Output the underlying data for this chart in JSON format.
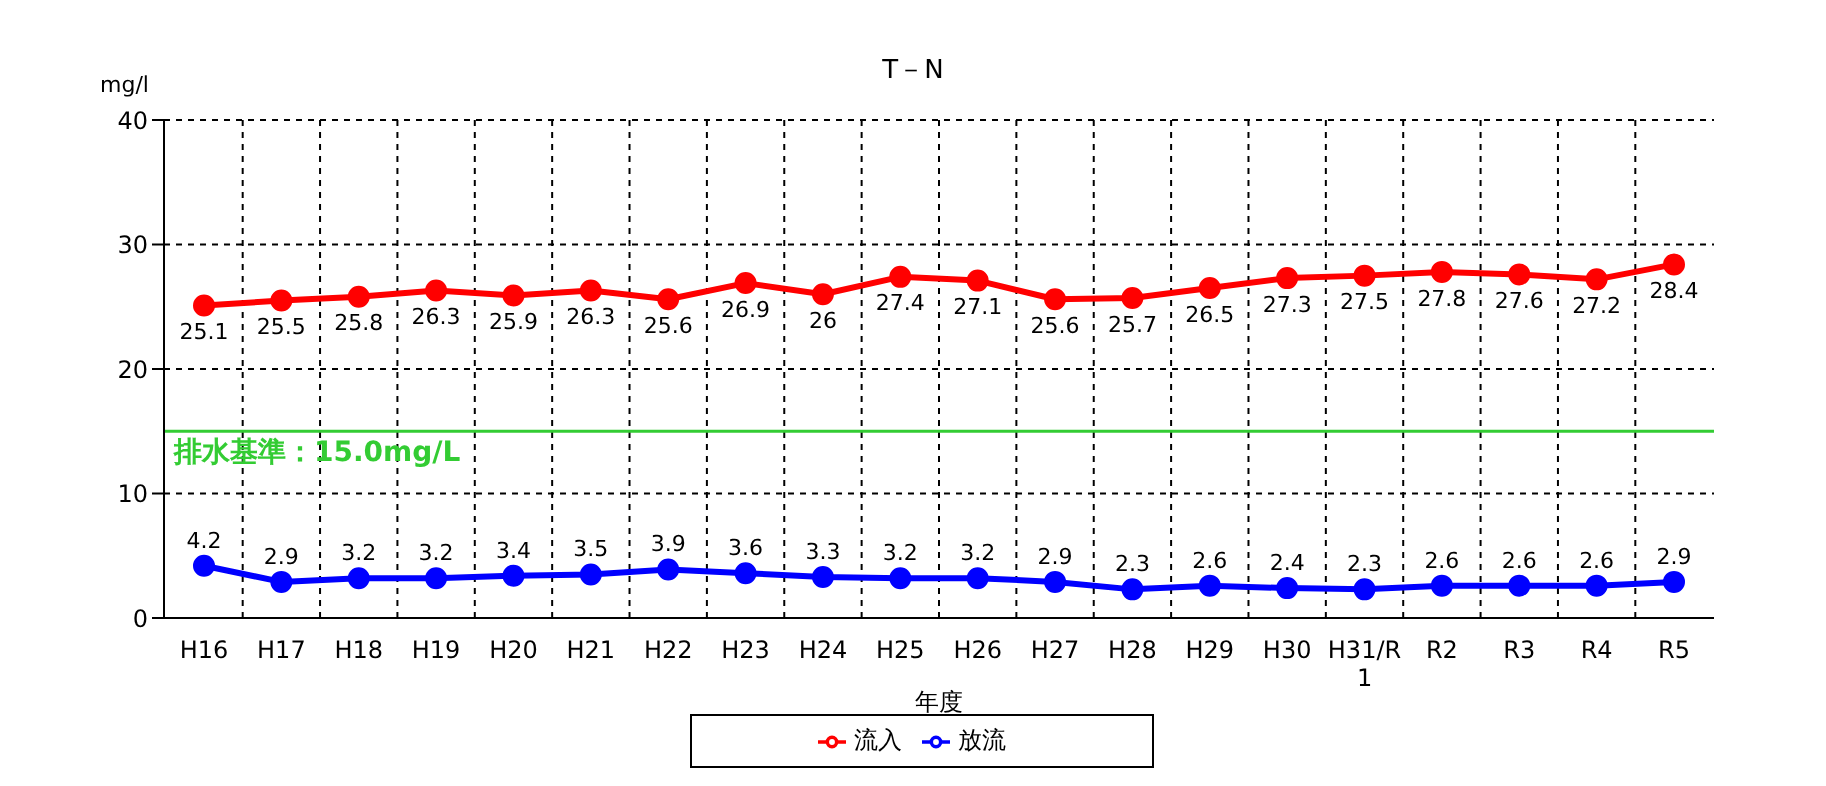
{
  "chart_data": {
    "type": "line",
    "title": "T－N",
    "ylabel": "mg/l",
    "xlabel": "年度",
    "categories": [
      "H16",
      "H17",
      "H18",
      "H19",
      "H20",
      "H21",
      "H22",
      "H23",
      "H24",
      "H25",
      "H26",
      "H27",
      "H28",
      "H29",
      "H30",
      "H31/R1",
      "R2",
      "R3",
      "R4",
      "R5"
    ],
    "series": [
      {
        "name": "流入",
        "color": "#ff0000",
        "values": [
          25.1,
          25.5,
          25.8,
          26.3,
          25.9,
          26.3,
          25.6,
          26.9,
          26,
          27.4,
          27.1,
          25.6,
          25.7,
          26.5,
          27.3,
          27.5,
          27.8,
          27.6,
          27.2,
          28.4
        ]
      },
      {
        "name": "放流",
        "color": "#0000ff",
        "values": [
          4.2,
          2.9,
          3.2,
          3.2,
          3.4,
          3.5,
          3.9,
          3.6,
          3.3,
          3.2,
          3.2,
          2.9,
          2.3,
          2.6,
          2.4,
          2.3,
          2.6,
          2.6,
          2.6,
          2.9
        ]
      }
    ],
    "ylim": [
      0,
      40
    ],
    "yticks": [
      0,
      10,
      20,
      30,
      40
    ],
    "grid": true,
    "legend": "bottom",
    "marker": "circle",
    "line_style": "solid",
    "data_labels": true,
    "ref_lines": [
      {
        "axis": "y",
        "value": 15,
        "label": "排水基準：15.0mg/L",
        "color": "#33cc33"
      }
    ]
  }
}
